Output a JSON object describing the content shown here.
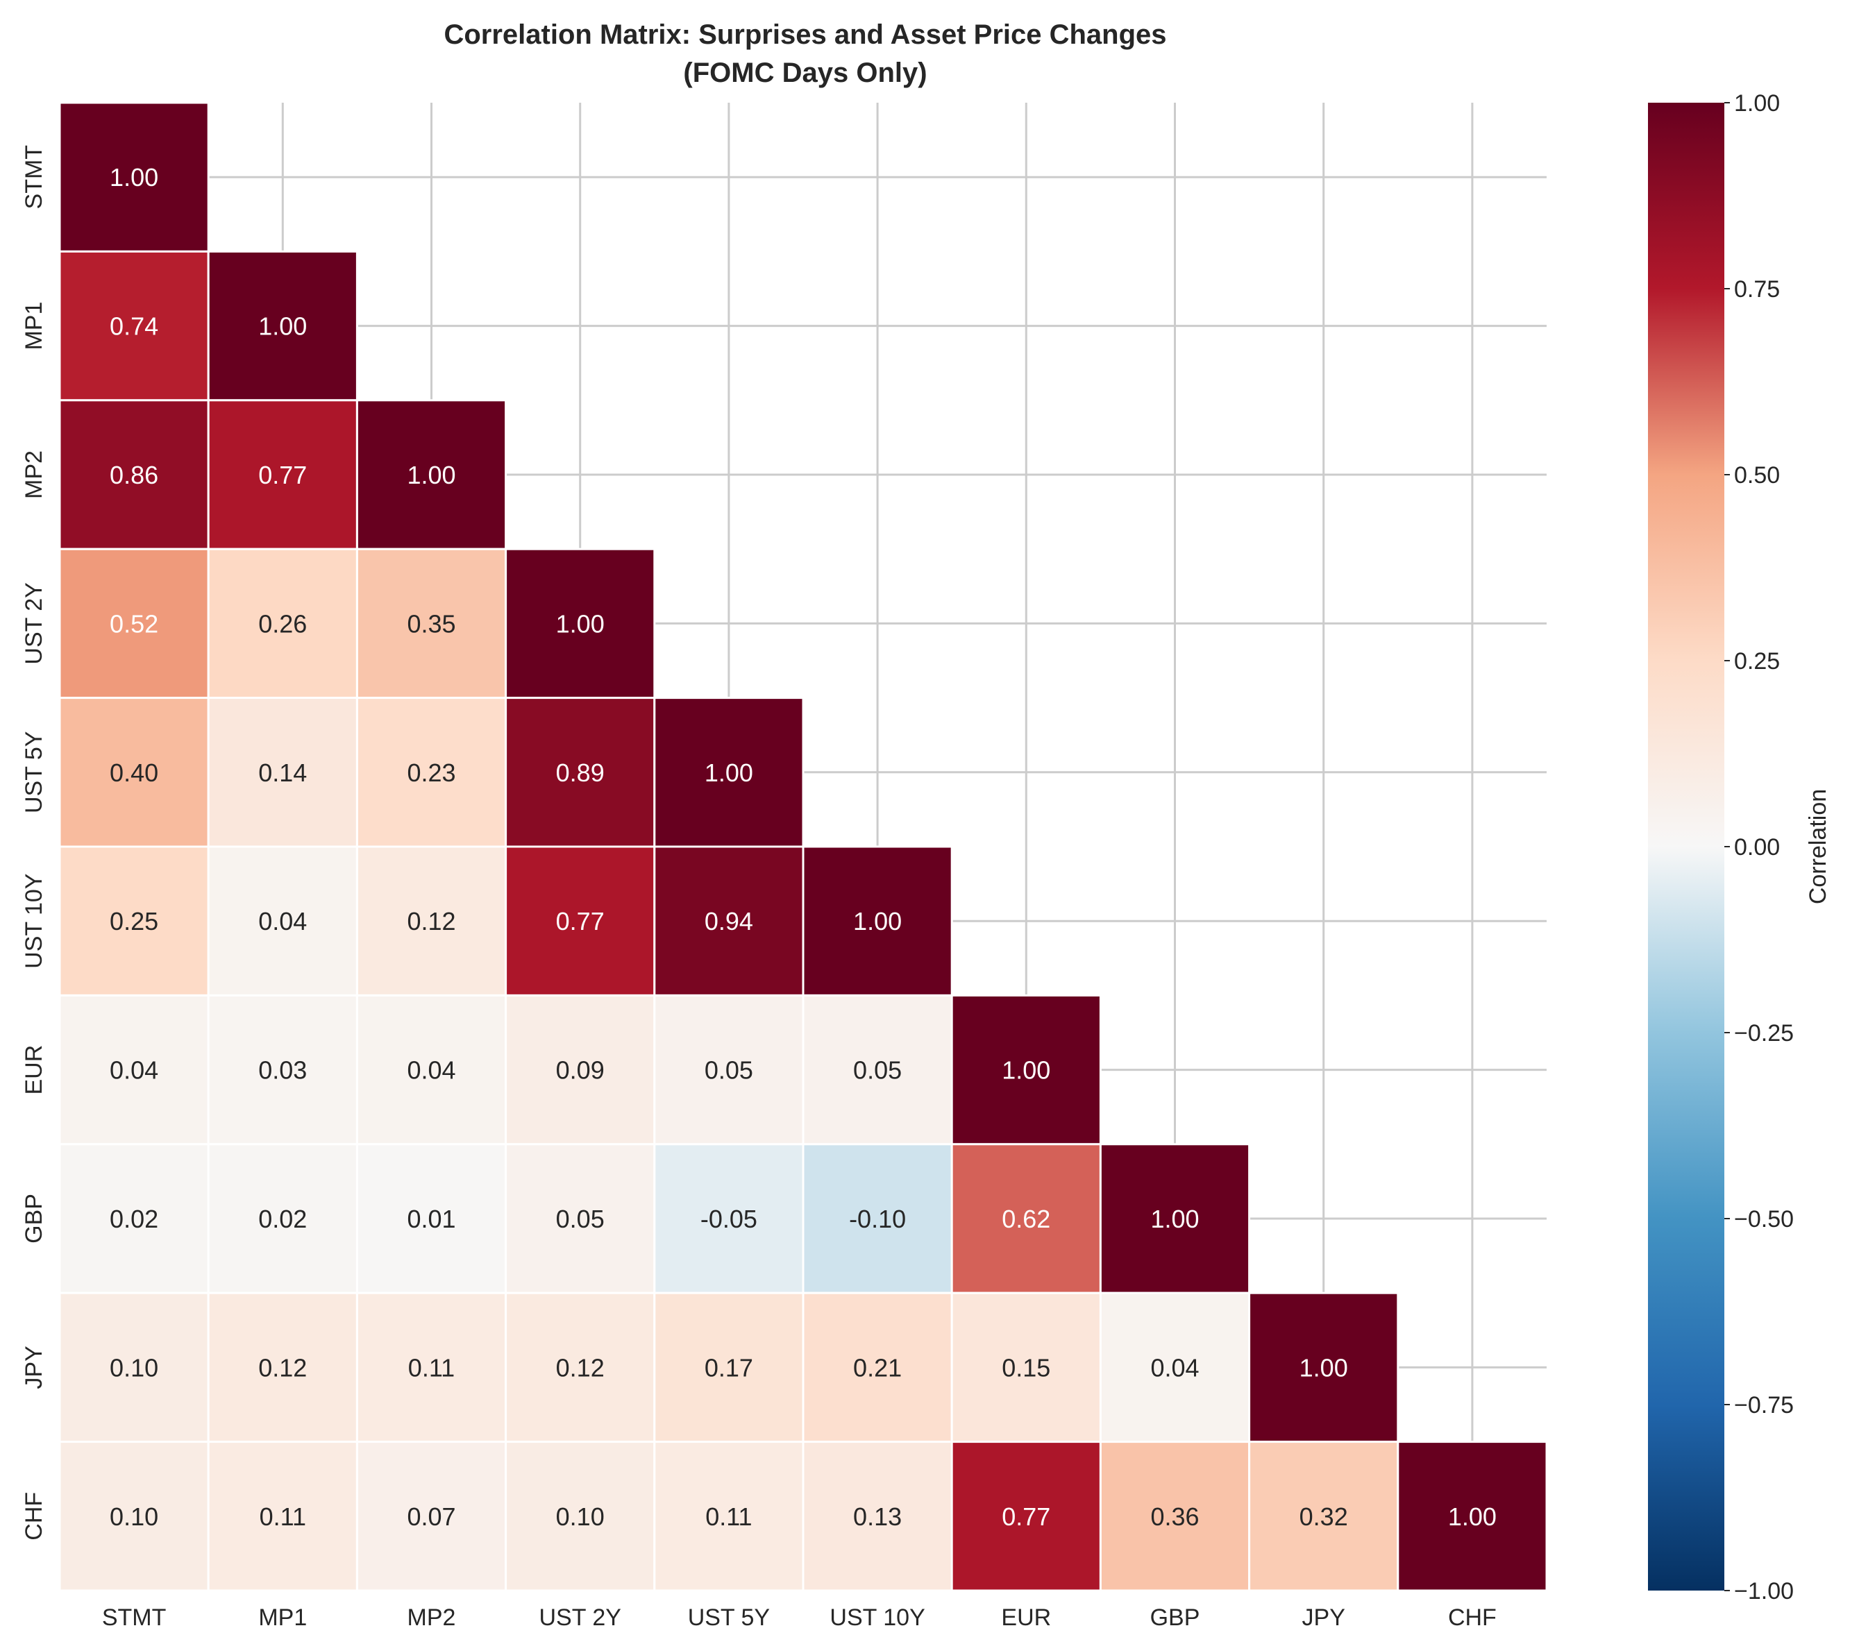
{
  "chart_data": {
    "type": "heatmap",
    "title": "Correlation Matrix: Surprises and Asset Price Changes",
    "subtitle": "(FOMC Days Only)",
    "labels": [
      "STMT",
      "MP1",
      "MP2",
      "UST 2Y",
      "UST 5Y",
      "UST 10Y",
      "EUR",
      "GBP",
      "JPY",
      "CHF"
    ],
    "values": [
      [
        1.0
      ],
      [
        0.74,
        1.0
      ],
      [
        0.86,
        0.77,
        1.0
      ],
      [
        0.52,
        0.26,
        0.35,
        1.0
      ],
      [
        0.4,
        0.14,
        0.23,
        0.89,
        1.0
      ],
      [
        0.25,
        0.04,
        0.12,
        0.77,
        0.94,
        1.0
      ],
      [
        0.04,
        0.03,
        0.04,
        0.09,
        0.05,
        0.05,
        1.0
      ],
      [
        0.02,
        0.02,
        0.01,
        0.05,
        -0.05,
        -0.1,
        0.62,
        1.0
      ],
      [
        0.1,
        0.12,
        0.11,
        0.12,
        0.17,
        0.21,
        0.15,
        0.04,
        1.0
      ],
      [
        0.1,
        0.11,
        0.07,
        0.1,
        0.11,
        0.13,
        0.77,
        0.36,
        0.32,
        1.0
      ]
    ],
    "masked": "upper triangle (above diagonal)",
    "value_format": "2 decimals",
    "colormap": "RdBu_r",
    "vmin": -1.0,
    "vmax": 1.0,
    "grid": true,
    "colorbar": {
      "label": "Correlation",
      "ticks": [
        "−1.00",
        "−0.75",
        "−0.50",
        "−0.25",
        "0.00",
        "0.25",
        "0.50",
        "0.75",
        "1.00"
      ],
      "tick_values": [
        -1.0,
        -0.75,
        -0.5,
        -0.25,
        0.0,
        0.25,
        0.5,
        0.75,
        1.0
      ],
      "placement": "right"
    }
  }
}
